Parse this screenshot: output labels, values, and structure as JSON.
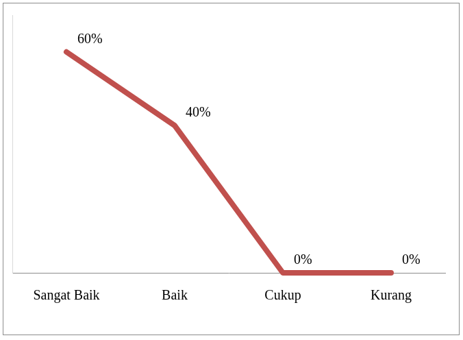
{
  "chart_data": {
    "type": "line",
    "categories": [
      "Sangat Baik",
      "Baik",
      "Cukup",
      "Kurang"
    ],
    "values": [
      60,
      40,
      0,
      0
    ],
    "value_labels": [
      "60%",
      "40%",
      "0%",
      "0%"
    ],
    "color": "#c0504d",
    "ylim": [
      0,
      70
    ],
    "grid": false,
    "data_labels": true,
    "tick_labels": "x"
  }
}
